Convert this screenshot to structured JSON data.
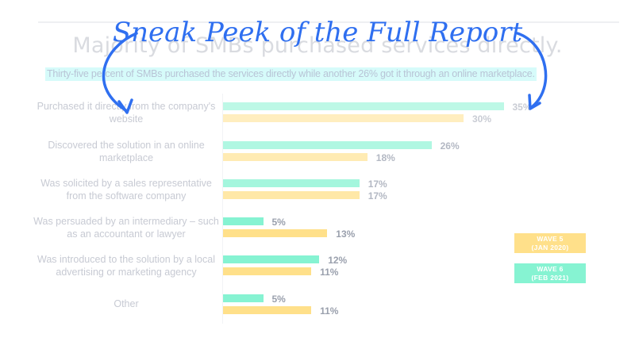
{
  "banner": {
    "text": "Sneak Peek of the Full Report",
    "color": "#2f6ff0"
  },
  "header": {
    "title": "Majority of SMBs purchased services directly.",
    "subtitle": "Thirty-five percent of SMBs purchased the services directly while another 26% got it through an online marketplace."
  },
  "legend": [
    {
      "line1": "WAVE 5",
      "line2": "(JAN 2020)",
      "color": "#ffe08a"
    },
    {
      "line1": "WAVE 6",
      "line2": "(FEB 2021)",
      "color": "#86f3d2"
    }
  ],
  "chart_data": {
    "type": "bar",
    "orientation": "horizontal",
    "title": "Majority of SMBs purchased services directly.",
    "subtitle": "Thirty-five percent of SMBs purchased the services directly while another 26% got it through an online marketplace.",
    "categories": [
      "Purchased it directly from the company's website",
      "Discovered the solution in an online marketplace",
      "Was solicited by a sales representative from the software company",
      "Was persuaded by an intermediary – such as an accountant or lawyer",
      "Was introduced to the solution by a local advertising or marketing agency",
      "Other"
    ],
    "series": [
      {
        "name": "Wave 6 (Feb 2021)",
        "color": "#86f3d2",
        "values": [
          35,
          26,
          17,
          5,
          12,
          5
        ]
      },
      {
        "name": "Wave 5 (Jan 2020)",
        "color": "#ffe08a",
        "values": [
          30,
          18,
          17,
          13,
          11,
          11
        ]
      }
    ],
    "value_format": "percent",
    "xlabel": "",
    "ylabel": "",
    "grid": false,
    "legend_position": "right"
  },
  "rows": [
    {
      "label_l1": "Purchased it directly from the company's",
      "label_l2": "website",
      "w6": "35%",
      "w5": "30%"
    },
    {
      "label_l1": "Discovered the solution in an online",
      "label_l2": "marketplace",
      "w6": "26%",
      "w5": "18%"
    },
    {
      "label_l1": "Was solicited by a sales representative",
      "label_l2": "from the software company",
      "w6": "17%",
      "w5": "17%"
    },
    {
      "label_l1": "Was persuaded by an intermediary – such",
      "label_l2": "as an accountant or lawyer",
      "w6": "5%",
      "w5": "13%"
    },
    {
      "label_l1": "Was introduced to the solution by a local",
      "label_l2": "advertising or marketing agency",
      "w6": "12%",
      "w5": "11%"
    },
    {
      "label_l1": "Other",
      "label_l2": "",
      "w6": "5%",
      "w5": "11%"
    }
  ]
}
